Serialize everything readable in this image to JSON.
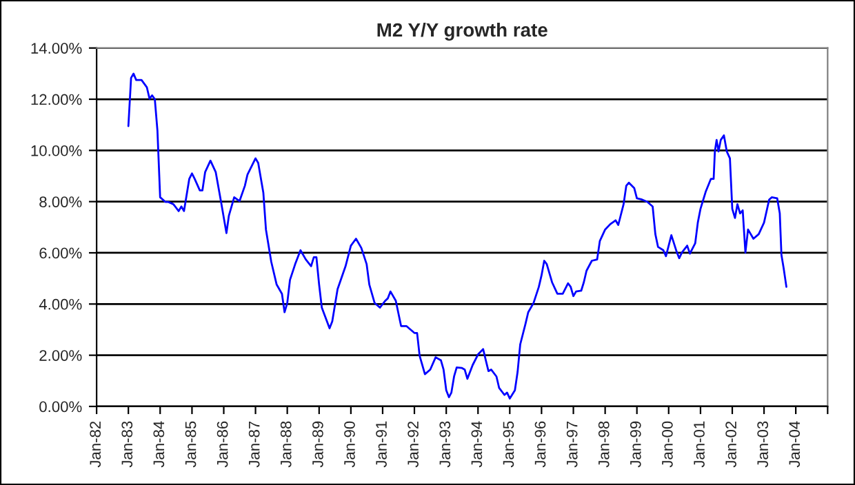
{
  "chart_data": {
    "type": "line",
    "title": "M2 Y/Y growth rate",
    "x": [
      "1983-01",
      "1983-02",
      "1983-03",
      "1983-04",
      "1983-06",
      "1983-08",
      "1983-09",
      "1983-10",
      "1983-11",
      "1983-12",
      "1984-01",
      "1984-03",
      "1984-04",
      "1984-06",
      "1984-08",
      "1984-09",
      "1984-10",
      "1984-12",
      "1985-01",
      "1985-02",
      "1985-04",
      "1985-05",
      "1985-06",
      "1985-08",
      "1985-10",
      "1985-12",
      "1986-02",
      "1986-03",
      "1986-05",
      "1986-07",
      "1986-09",
      "1986-10",
      "1987-01",
      "1987-02",
      "1987-04",
      "1987-05",
      "1987-07",
      "1987-09",
      "1987-11",
      "1987-12",
      "1988-01",
      "1988-02",
      "1988-04",
      "1988-06",
      "1988-08",
      "1988-10",
      "1988-11",
      "1988-12",
      "1989-01",
      "1989-02",
      "1989-05",
      "1989-06",
      "1989-08",
      "1989-11",
      "1990-01",
      "1990-03",
      "1990-05",
      "1990-07",
      "1990-08",
      "1990-10",
      "1990-12",
      "1991-02",
      "1991-03",
      "1991-04",
      "1991-06",
      "1991-08",
      "1991-10",
      "1992-01",
      "1992-02",
      "1992-03",
      "1992-05",
      "1992-07",
      "1992-09",
      "1992-11",
      "1992-12",
      "1993-01",
      "1993-02",
      "1993-03",
      "1993-04",
      "1993-05",
      "1993-07",
      "1993-08",
      "1993-09",
      "1993-11",
      "1994-01",
      "1994-03",
      "1994-04",
      "1994-05",
      "1994-06",
      "1994-08",
      "1994-09",
      "1994-11",
      "1994-12",
      "1995-01",
      "1995-03",
      "1995-04",
      "1995-05",
      "1995-07",
      "1995-08",
      "1995-10",
      "1995-12",
      "1996-01",
      "1996-02",
      "1996-03",
      "1996-05",
      "1996-07",
      "1996-09",
      "1996-11",
      "1996-12",
      "1997-01",
      "1997-02",
      "1997-04",
      "1997-05",
      "1997-06",
      "1997-08",
      "1997-10",
      "1997-11",
      "1998-01",
      "1998-03",
      "1998-05",
      "1998-06",
      "1998-08",
      "1998-09",
      "1998-10",
      "1998-12",
      "1999-01",
      "1999-03",
      "1999-05",
      "1999-07",
      "1999-08",
      "1999-09",
      "1999-11",
      "1999-12",
      "2000-01",
      "2000-02",
      "2000-04",
      "2000-05",
      "2000-06",
      "2000-08",
      "2000-09",
      "2000-11",
      "2000-12",
      "2001-01",
      "2001-03",
      "2001-05",
      "2001-06",
      "2001-06-15",
      "2001-07-05",
      "2001-07-27",
      "2001-08-22",
      "2001-09-27",
      "2001-10-30",
      "2001-12-05",
      "2002-01",
      "2002-02",
      "2002-03",
      "2002-04",
      "2002-05",
      "2002-06",
      "2002-07",
      "2002-09",
      "2002-11",
      "2003-01",
      "2003-03",
      "2003-04",
      "2003-06",
      "2003-07",
      "2003-07-20",
      "2003-08-15",
      "2003-09-15"
    ],
    "series": [
      {
        "color": "#0000ff",
        "values": [
          10.95,
          12.83,
          13.0,
          12.75,
          12.75,
          12.47,
          12.02,
          12.15,
          12.0,
          10.77,
          8.17,
          7.99,
          7.99,
          7.9,
          7.63,
          7.81,
          7.63,
          8.89,
          9.1,
          8.89,
          8.44,
          8.44,
          9.15,
          9.6,
          9.15,
          7.99,
          6.77,
          7.45,
          8.17,
          8.02,
          8.62,
          9.06,
          9.69,
          9.51,
          8.35,
          6.91,
          5.65,
          4.76,
          4.4,
          3.68,
          4.04,
          4.94,
          5.56,
          6.1,
          5.74,
          5.48,
          5.83,
          5.83,
          4.76,
          3.86,
          3.05,
          3.32,
          4.58,
          5.48,
          6.28,
          6.55,
          6.19,
          5.56,
          4.76,
          4.04,
          3.86,
          4.13,
          4.22,
          4.49,
          4.13,
          3.14,
          3.14,
          2.87,
          2.87,
          1.98,
          1.26,
          1.44,
          1.92,
          1.8,
          1.44,
          0.63,
          0.36,
          0.54,
          1.17,
          1.52,
          1.5,
          1.44,
          1.08,
          1.62,
          2.03,
          2.24,
          1.8,
          1.38,
          1.44,
          1.17,
          0.72,
          0.45,
          0.54,
          0.31,
          0.63,
          1.35,
          2.42,
          3.23,
          3.68,
          4.04,
          4.67,
          5.12,
          5.69,
          5.56,
          4.85,
          4.4,
          4.4,
          4.81,
          4.67,
          4.31,
          4.49,
          4.52,
          4.85,
          5.3,
          5.69,
          5.74,
          6.46,
          6.91,
          7.12,
          7.27,
          7.09,
          7.9,
          8.62,
          8.74,
          8.53,
          8.13,
          8.08,
          7.99,
          7.81,
          6.73,
          6.23,
          6.1,
          5.87,
          6.28,
          6.69,
          6.05,
          5.79,
          6.01,
          6.28,
          5.97,
          6.37,
          7.18,
          7.72,
          8.38,
          8.89,
          8.89,
          9.96,
          10.41,
          9.96,
          10.41,
          10.59,
          9.96,
          9.69,
          7.72,
          7.36,
          7.9,
          7.54,
          7.66,
          6.01,
          6.91,
          6.55,
          6.73,
          7.18,
          8.08,
          8.17,
          8.13,
          7.54,
          5.92,
          5.39,
          4.67
        ]
      }
    ],
    "xlim": [
      "1982-01",
      "2005-01"
    ],
    "xticks": [
      {
        "value": "1982-01",
        "label": "Jan-82"
      },
      {
        "value": "1983-01",
        "label": "Jan-83"
      },
      {
        "value": "1984-01",
        "label": "Jan-84"
      },
      {
        "value": "1985-01",
        "label": "Jan-85"
      },
      {
        "value": "1986-01",
        "label": "Jan-86"
      },
      {
        "value": "1987-01",
        "label": "Jan-87"
      },
      {
        "value": "1988-01",
        "label": "Jan-88"
      },
      {
        "value": "1989-01",
        "label": "Jan-89"
      },
      {
        "value": "1990-01",
        "label": "Jan-90"
      },
      {
        "value": "1991-01",
        "label": "Jan-91"
      },
      {
        "value": "1992-01",
        "label": "Jan-92"
      },
      {
        "value": "1993-01",
        "label": "Jan-93"
      },
      {
        "value": "1994-01",
        "label": "Jan-94"
      },
      {
        "value": "1995-01",
        "label": "Jan-95"
      },
      {
        "value": "1996-01",
        "label": "Jan-96"
      },
      {
        "value": "1997-01",
        "label": "Jan-97"
      },
      {
        "value": "1998-01",
        "label": "Jan-98"
      },
      {
        "value": "1999-01",
        "label": "Jan-99"
      },
      {
        "value": "2000-01",
        "label": "Jan-00"
      },
      {
        "value": "2001-01",
        "label": "Jan-01"
      },
      {
        "value": "2002-01",
        "label": "Jan-02"
      },
      {
        "value": "2003-01",
        "label": "Jan-03"
      },
      {
        "value": "2004-01",
        "label": "Jan-04"
      },
      {
        "value": "2005-01",
        "label": null
      }
    ],
    "ylim": [
      0,
      14
    ],
    "yticks": [
      {
        "value": 0,
        "label": "0.00%"
      },
      {
        "value": 2,
        "label": "2.00%"
      },
      {
        "value": 4,
        "label": "4.00%"
      },
      {
        "value": 6,
        "label": "6.00%"
      },
      {
        "value": 8,
        "label": "8.00%"
      },
      {
        "value": 10,
        "label": "10.00%"
      },
      {
        "value": 12,
        "label": "12.00%"
      },
      {
        "value": 14,
        "label": "14.00%"
      }
    ],
    "grid": "y",
    "legend": false,
    "marker": "none",
    "line_style": "solid"
  }
}
